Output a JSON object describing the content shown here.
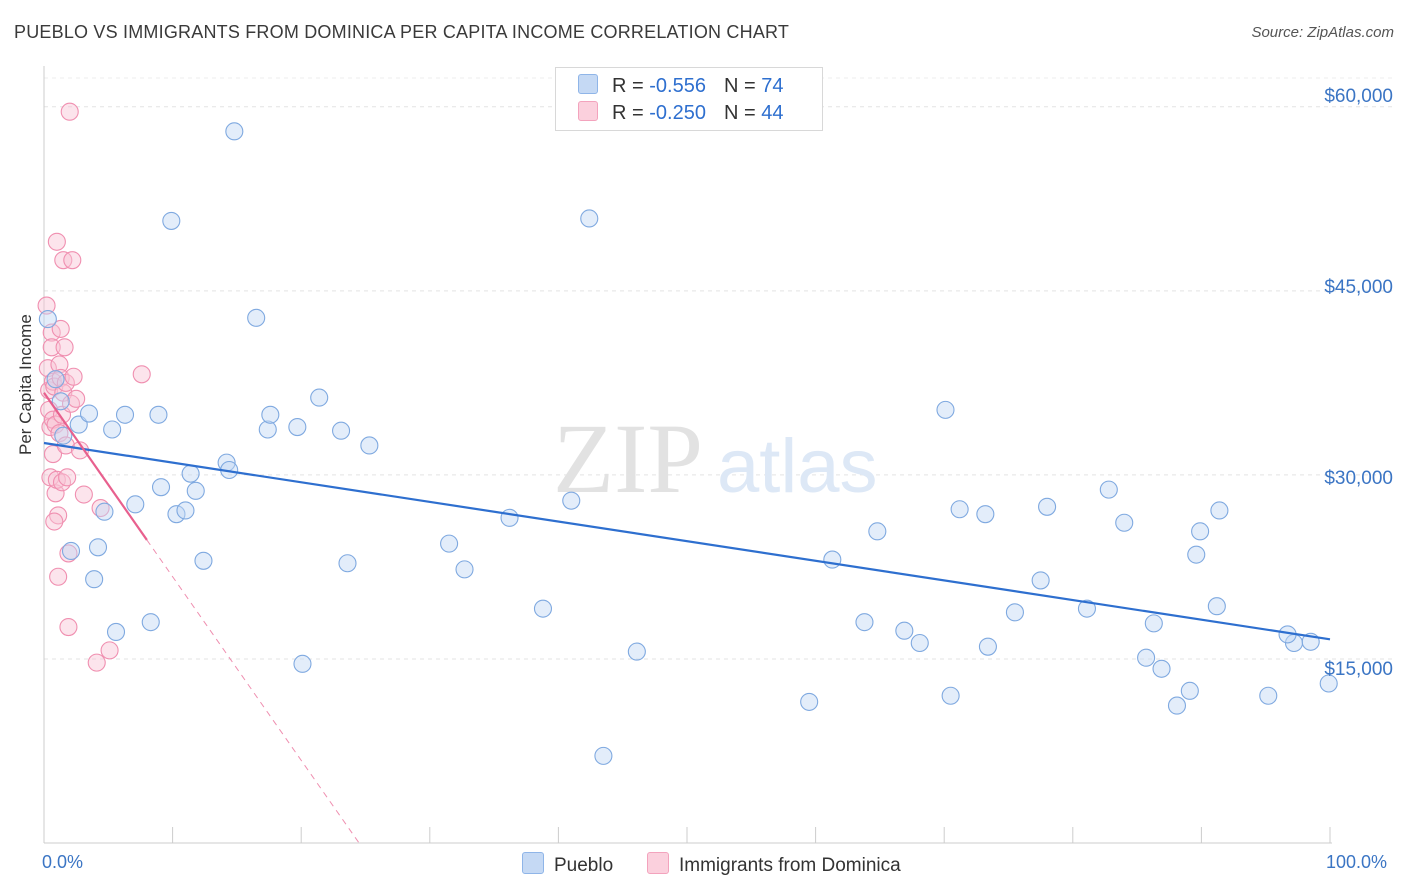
{
  "title": "PUEBLO VS IMMIGRANTS FROM DOMINICA PER CAPITA INCOME CORRELATION CHART",
  "source": "Source: ZipAtlas.com",
  "watermark": {
    "zip": "ZIP",
    "atlas": "atlas"
  },
  "legend_top": [
    {
      "r_label": "R = ",
      "r_value": "-0.556",
      "n_label": "N = ",
      "n_value": "74",
      "color": "#aac8f0"
    },
    {
      "r_label": "R = ",
      "r_value": "-0.250",
      "n_label": "N = ",
      "n_value": "44",
      "color": "#f6b8ca"
    }
  ],
  "chart_data": {
    "type": "scatter",
    "title": "PUEBLO VS IMMIGRANTS FROM DOMINICA PER CAPITA INCOME CORRELATION CHART",
    "xlabel": "",
    "ylabel": "Per Capita Income",
    "xlim": [
      0,
      100
    ],
    "ylim": [
      0,
      63000
    ],
    "y_ticks": [
      15000,
      30000,
      45000,
      60000
    ],
    "y_tick_labels": [
      "$15,000",
      "$30,000",
      "$45,000",
      "$60,000"
    ],
    "x_tick_labels": [
      "0.0%",
      "100.0%"
    ],
    "grid": true,
    "legend_position": "top-center",
    "series": [
      {
        "name": "Pueblo",
        "color": "#7fb0e8",
        "line_color": "#2e6fcf",
        "trend": {
          "x": [
            0,
            100
          ],
          "y": [
            32600,
            16600
          ]
        },
        "points": [
          [
            0.3,
            42700
          ],
          [
            0.9,
            37800
          ],
          [
            1.3,
            36000
          ],
          [
            1.5,
            33200
          ],
          [
            2.1,
            23800
          ],
          [
            2.7,
            34100
          ],
          [
            3.5,
            35000
          ],
          [
            3.9,
            21500
          ],
          [
            4.2,
            24100
          ],
          [
            4.7,
            27000
          ],
          [
            5.3,
            33700
          ],
          [
            5.6,
            17200
          ],
          [
            6.3,
            34900
          ],
          [
            7.1,
            27600
          ],
          [
            8.3,
            18000
          ],
          [
            8.9,
            34900
          ],
          [
            9.1,
            29000
          ],
          [
            9.9,
            50700
          ],
          [
            10.3,
            26800
          ],
          [
            11.0,
            27100
          ],
          [
            11.4,
            30100
          ],
          [
            11.8,
            28700
          ],
          [
            12.4,
            23000
          ],
          [
            14.2,
            31000
          ],
          [
            14.4,
            30400
          ],
          [
            14.8,
            58000
          ],
          [
            16.5,
            42800
          ],
          [
            17.4,
            33700
          ],
          [
            17.6,
            34900
          ],
          [
            19.7,
            33900
          ],
          [
            20.1,
            14600
          ],
          [
            21.4,
            36300
          ],
          [
            23.1,
            33600
          ],
          [
            23.6,
            22800
          ],
          [
            25.3,
            32400
          ],
          [
            31.5,
            24400
          ],
          [
            32.7,
            22300
          ],
          [
            36.2,
            26500
          ],
          [
            38.8,
            19100
          ],
          [
            41.0,
            27900
          ],
          [
            42.4,
            50900
          ],
          [
            43.5,
            7100
          ],
          [
            46.1,
            15600
          ],
          [
            59.5,
            11500
          ],
          [
            61.3,
            23100
          ],
          [
            63.8,
            18000
          ],
          [
            64.8,
            25400
          ],
          [
            66.9,
            17300
          ],
          [
            68.1,
            16300
          ],
          [
            70.1,
            35300
          ],
          [
            70.5,
            12000
          ],
          [
            71.2,
            27200
          ],
          [
            73.2,
            26800
          ],
          [
            73.4,
            16000
          ],
          [
            75.5,
            18800
          ],
          [
            77.5,
            21400
          ],
          [
            78.0,
            27400
          ],
          [
            81.1,
            19100
          ],
          [
            82.8,
            28800
          ],
          [
            84.0,
            26100
          ],
          [
            85.7,
            15100
          ],
          [
            86.3,
            17900
          ],
          [
            86.9,
            14200
          ],
          [
            88.1,
            11200
          ],
          [
            89.1,
            12400
          ],
          [
            89.6,
            23500
          ],
          [
            89.9,
            25400
          ],
          [
            91.2,
            19300
          ],
          [
            91.4,
            27100
          ],
          [
            95.2,
            12000
          ],
          [
            97.2,
            16300
          ],
          [
            98.5,
            16400
          ],
          [
            96.7,
            17000
          ],
          [
            99.9,
            13000
          ]
        ]
      },
      {
        "name": "Immigrants from Dominica",
        "color": "#f49ab8",
        "line_color": "#e8608e",
        "trend": {
          "x": [
            0,
            8
          ],
          "y": [
            36700,
            24700
          ]
        },
        "trend_dashed": {
          "x": [
            8,
            24.5
          ],
          "y": [
            24700,
            0
          ]
        },
        "points": [
          [
            0.2,
            43800
          ],
          [
            0.3,
            38700
          ],
          [
            0.4,
            36900
          ],
          [
            0.4,
            35300
          ],
          [
            0.5,
            33900
          ],
          [
            0.5,
            29800
          ],
          [
            0.6,
            41600
          ],
          [
            0.6,
            40400
          ],
          [
            0.7,
            37600
          ],
          [
            0.7,
            34500
          ],
          [
            0.7,
            31700
          ],
          [
            0.8,
            37200
          ],
          [
            0.9,
            34100
          ],
          [
            0.9,
            28500
          ],
          [
            1.0,
            49000
          ],
          [
            1.0,
            29600
          ],
          [
            1.1,
            26700
          ],
          [
            1.1,
            21700
          ],
          [
            1.2,
            39000
          ],
          [
            1.2,
            33400
          ],
          [
            1.3,
            37900
          ],
          [
            1.3,
            41900
          ],
          [
            1.4,
            34900
          ],
          [
            1.4,
            29400
          ],
          [
            1.5,
            47500
          ],
          [
            1.5,
            36700
          ],
          [
            1.6,
            40400
          ],
          [
            1.7,
            37500
          ],
          [
            1.7,
            32400
          ],
          [
            1.8,
            29800
          ],
          [
            1.9,
            23600
          ],
          [
            1.9,
            17600
          ],
          [
            2.0,
            59600
          ],
          [
            2.1,
            35800
          ],
          [
            2.2,
            47500
          ],
          [
            2.3,
            38000
          ],
          [
            2.5,
            36200
          ],
          [
            2.8,
            32000
          ],
          [
            3.1,
            28400
          ],
          [
            4.1,
            14700
          ],
          [
            4.4,
            27300
          ],
          [
            5.1,
            15700
          ],
          [
            7.6,
            38200
          ],
          [
            0.8,
            26200
          ]
        ]
      }
    ]
  }
}
